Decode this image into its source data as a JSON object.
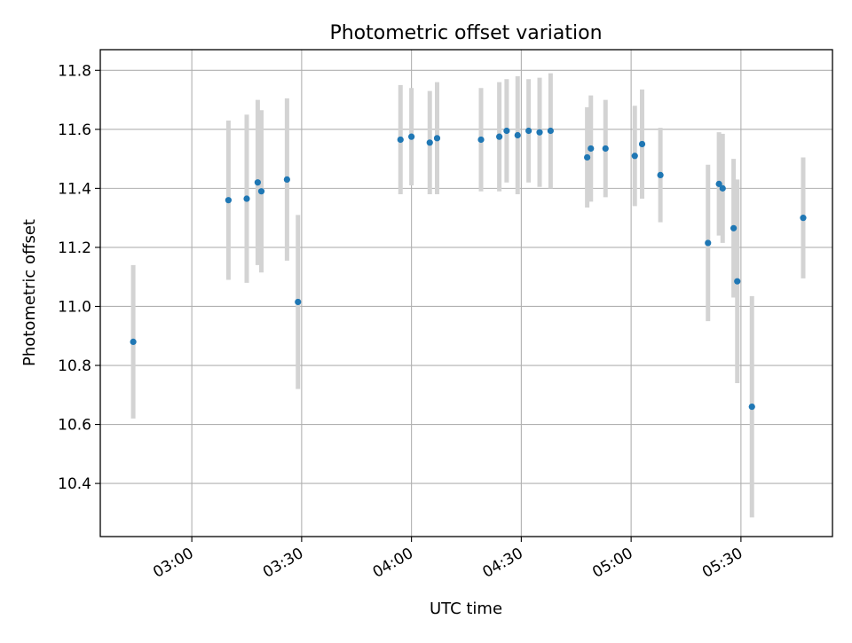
{
  "chart_data": {
    "type": "scatter",
    "title": "Photometric offset variation",
    "xlabel": "UTC time",
    "ylabel": "Photometric offset",
    "x_ticks": [
      "03:00",
      "03:30",
      "04:00",
      "04:30",
      "05:00",
      "05:30"
    ],
    "y_ticks": [
      "10.4",
      "10.6",
      "10.8",
      "11.0",
      "11.2",
      "11.4",
      "11.6",
      "11.8"
    ],
    "xlim": [
      "02:35",
      "05:55"
    ],
    "ylim": [
      10.22,
      11.87
    ],
    "grid": true,
    "colors": {
      "point": "#1f77b4",
      "errorbar": "#d3d3d3",
      "grid": "#b0b0b0"
    },
    "points": [
      {
        "x": "02:44",
        "y": 10.88,
        "err": 0.26
      },
      {
        "x": "03:10",
        "y": 11.36,
        "err": 0.27
      },
      {
        "x": "03:15",
        "y": 11.365,
        "err": 0.285
      },
      {
        "x": "03:18",
        "y": 11.42,
        "err": 0.28
      },
      {
        "x": "03:19",
        "y": 11.39,
        "err": 0.275
      },
      {
        "x": "03:26",
        "y": 11.43,
        "err": 0.275
      },
      {
        "x": "03:29",
        "y": 11.015,
        "err": 0.295
      },
      {
        "x": "03:57",
        "y": 11.565,
        "err": 0.185
      },
      {
        "x": "04:00",
        "y": 11.575,
        "err": 0.165
      },
      {
        "x": "04:05",
        "y": 11.555,
        "err": 0.175
      },
      {
        "x": "04:07",
        "y": 11.57,
        "err": 0.19
      },
      {
        "x": "04:19",
        "y": 11.565,
        "err": 0.175
      },
      {
        "x": "04:24",
        "y": 11.575,
        "err": 0.185
      },
      {
        "x": "04:26",
        "y": 11.595,
        "err": 0.175
      },
      {
        "x": "04:29",
        "y": 11.58,
        "err": 0.2
      },
      {
        "x": "04:32",
        "y": 11.595,
        "err": 0.175
      },
      {
        "x": "04:35",
        "y": 11.59,
        "err": 0.185
      },
      {
        "x": "04:38",
        "y": 11.595,
        "err": 0.195
      },
      {
        "x": "04:48",
        "y": 11.505,
        "err": 0.17
      },
      {
        "x": "04:49",
        "y": 11.535,
        "err": 0.18
      },
      {
        "x": "04:53",
        "y": 11.535,
        "err": 0.165
      },
      {
        "x": "05:01",
        "y": 11.51,
        "err": 0.17
      },
      {
        "x": "05:03",
        "y": 11.55,
        "err": 0.185
      },
      {
        "x": "05:08",
        "y": 11.445,
        "err": 0.16
      },
      {
        "x": "05:21",
        "y": 11.215,
        "err": 0.265
      },
      {
        "x": "05:24",
        "y": 11.415,
        "err": 0.175
      },
      {
        "x": "05:25",
        "y": 11.4,
        "err": 0.185
      },
      {
        "x": "05:28",
        "y": 11.265,
        "err": 0.235
      },
      {
        "x": "05:29",
        "y": 11.085,
        "err": 0.345
      },
      {
        "x": "05:33",
        "y": 10.66,
        "err": 0.375
      },
      {
        "x": "05:47",
        "y": 11.3,
        "err": 0.205
      }
    ]
  }
}
